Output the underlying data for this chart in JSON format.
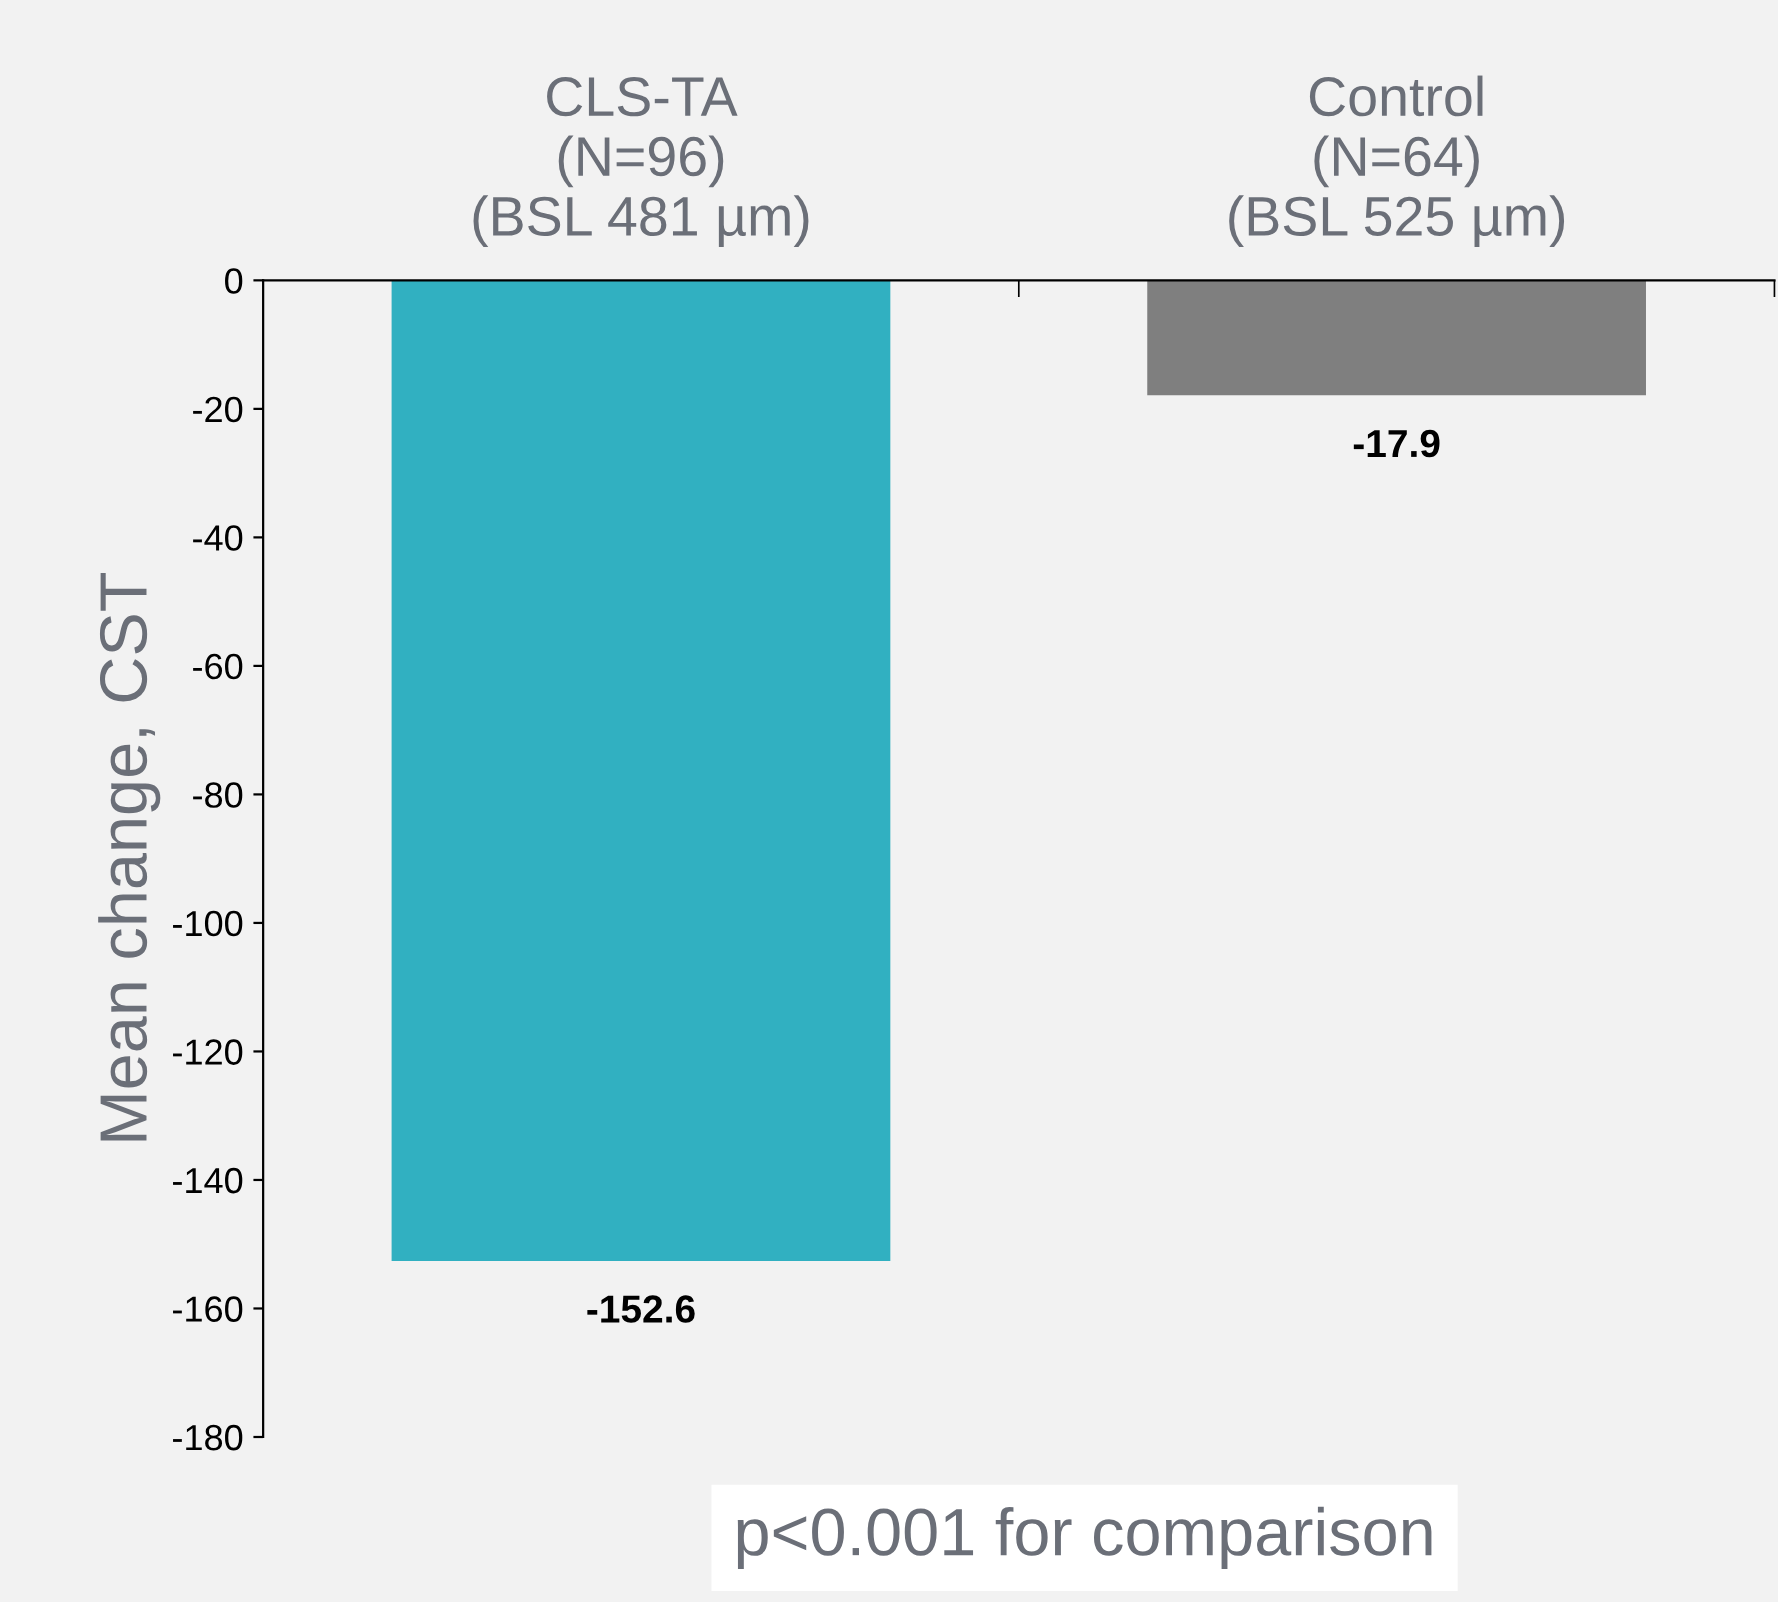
{
  "chart_data": {
    "type": "bar",
    "categories": [
      "CLS-TA\n(N=96)\n(BSL 481 µm)",
      "Control\n(N=64)\n(BSL 525 µm)"
    ],
    "values": [
      -152.6,
      -17.9
    ],
    "colors": [
      "#31b0c1",
      "#7f7f7f"
    ],
    "ylabel": "Mean change, CST",
    "ylim": [
      -180,
      0
    ],
    "yticks": [
      -180,
      -160,
      -140,
      -120,
      -100,
      -80,
      -60,
      -40,
      -20,
      0
    ],
    "data_labels": true,
    "grid": false,
    "annotations": [
      "p<0.001 for comparison"
    ]
  }
}
